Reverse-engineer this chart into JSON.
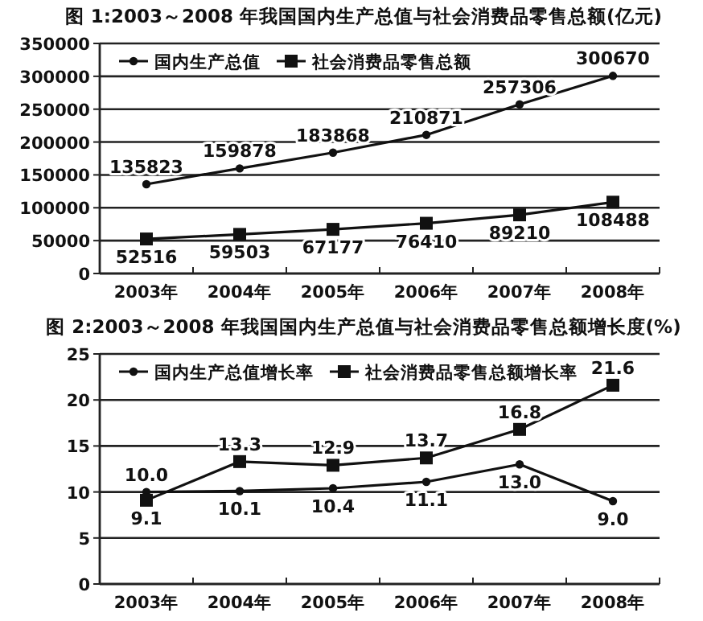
{
  "chart_data": [
    {
      "type": "line",
      "title": "图 1:2003～2008 年我国国内生产总值与社会消费品零售总额(亿元)",
      "categories": [
        "2003年",
        "2004年",
        "2005年",
        "2006年",
        "2007年",
        "2008年"
      ],
      "ylim": [
        0,
        350000
      ],
      "yticks": [
        0,
        50000,
        100000,
        150000,
        200000,
        250000,
        300000,
        350000
      ],
      "grid": "y",
      "legend": "top left",
      "data_labels": true,
      "series": [
        {
          "name": "国内生产总值",
          "color": "#111111",
          "marker": "circle",
          "values": [
            135823,
            159878,
            183868,
            210871,
            257306,
            300670
          ]
        },
        {
          "name": "社会消费品零售总额",
          "color": "#111111",
          "marker": "square",
          "values": [
            52516,
            59503,
            67177,
            76410,
            89210,
            108488
          ]
        }
      ]
    },
    {
      "type": "line",
      "title": "图 2:2003～2008 年我国国内生产总值与社会消费品零售总额增长度(%)",
      "categories": [
        "2003年",
        "2004年",
        "2005年",
        "2006年",
        "2007年",
        "2008年"
      ],
      "ylim": [
        0,
        25
      ],
      "yticks": [
        0,
        5,
        10,
        15,
        20,
        25
      ],
      "grid": "y",
      "legend": "top left",
      "series": [
        {
          "name": "国内生产总值增长率",
          "color": "#111111",
          "marker": "circle",
          "values": [
            10.0,
            10.1,
            10.4,
            11.1,
            13.0,
            9.0
          ],
          "value_labels": [
            "10.0",
            "10.1",
            "10.4",
            "11.1",
            "13.0",
            "9.0"
          ]
        },
        {
          "name": "社会消费品零售总额增长率",
          "color": "#111111",
          "marker": "square",
          "values": [
            9.1,
            13.3,
            12.9,
            13.7,
            16.8,
            21.6
          ],
          "value_labels": [
            "9.1",
            "13.3",
            "12.9",
            "13.7",
            "16.8",
            "21.6"
          ]
        }
      ]
    }
  ]
}
